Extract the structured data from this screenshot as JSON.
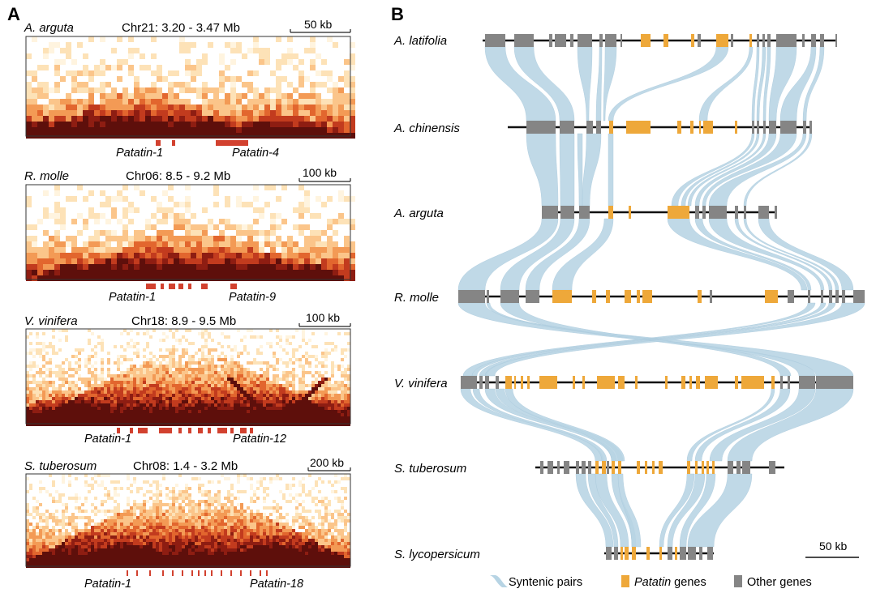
{
  "panels": {
    "a_label": "A",
    "b_label": "B"
  },
  "colors": {
    "synteny": "#b7d4e4",
    "patatin": "#eea83a",
    "other": "#858585",
    "hic_dark": "#5e0f0b",
    "hic_mark": "#d2412f",
    "frame": "#333333"
  },
  "hic_maps": [
    {
      "species": "A. arguta",
      "region": "Chr21: 3.20 - 3.47 Mb",
      "scale_label": "50 kb",
      "gene_left": "Patatin-1",
      "gene_right": "Patatin-4"
    },
    {
      "species": "R. molle",
      "region": "Chr06: 8.5 - 9.2 Mb",
      "scale_label": "100 kb",
      "gene_left": "Patatin-1",
      "gene_right": "Patatin-9"
    },
    {
      "species": "V. vinifera",
      "region": "Chr18: 8.9 - 9.5 Mb",
      "scale_label": "100 kb",
      "gene_left": "Patatin-1",
      "gene_right": "Patatin-12"
    },
    {
      "species": "S. tuberosum",
      "region": "Chr08: 1.4 - 3.2 Mb",
      "scale_label": "200 kb",
      "gene_left": "Patatin-1",
      "gene_right": "Patatin-18"
    }
  ],
  "synteny_tracks": [
    {
      "species": "A. latifolia"
    },
    {
      "species": "A. chinensis"
    },
    {
      "species": "A. arguta"
    },
    {
      "species": "R. molle"
    },
    {
      "species": "V. vinifera"
    },
    {
      "species": "S. tuberosum"
    },
    {
      "species": "S. lycopersicum"
    }
  ],
  "scale_bar": {
    "label": "50 kb"
  },
  "legend": {
    "syntenic": "Syntenic pairs",
    "patatin_italic": "Patatin",
    "patatin_rest": " genes",
    "other": "Other genes"
  }
}
